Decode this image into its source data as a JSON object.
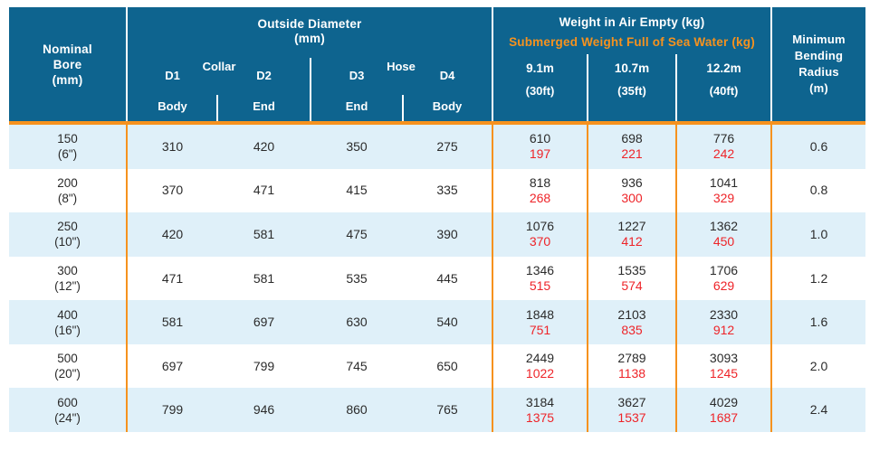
{
  "colors": {
    "header_background": "#0E648F",
    "accent_orange": "#F6921E",
    "value_red": "#EE2429",
    "row_alternate_blue": "#DFF0F9",
    "text_dark": "#2B2B2B"
  },
  "chart_data": {
    "type": "table",
    "header": {
      "nominal_bore": {
        "line1": "Nominal",
        "line2": "Bore",
        "line3": "(mm)"
      },
      "outside_diameter": {
        "title": "Outside Diameter",
        "unit": "(mm)",
        "group1_label": "Collar",
        "group2_label": "Hose",
        "d1": "D1",
        "d2": "D2",
        "d3": "D3",
        "d4": "D4",
        "d1_pos": "Body",
        "d2_pos": "End",
        "d3_pos": "End",
        "d4_pos": "Body"
      },
      "weight": {
        "title": "Weight in Air Empty (kg)",
        "subtitle": "Submerged Weight Full of Sea Water (kg)",
        "col1": {
          "len": "9.1m",
          "ft": "(30ft)"
        },
        "col2": {
          "len": "10.7m",
          "ft": "(35ft)"
        },
        "col3": {
          "len": "12.2m",
          "ft": "(40ft)"
        }
      },
      "min_bending": {
        "line1": "Minimum",
        "line2": "Bending",
        "line3": "Radius",
        "line4": "(m)"
      }
    },
    "rows": [
      {
        "bore": "150",
        "inch": "(6\")",
        "d1": "310",
        "d2": "420",
        "d3": "350",
        "d4": "275",
        "w1_air": "610",
        "w1_sub": "197",
        "w2_air": "698",
        "w2_sub": "221",
        "w3_air": "776",
        "w3_sub": "242",
        "radius": "0.6"
      },
      {
        "bore": "200",
        "inch": "(8\")",
        "d1": "370",
        "d2": "471",
        "d3": "415",
        "d4": "335",
        "w1_air": "818",
        "w1_sub": "268",
        "w2_air": "936",
        "w2_sub": "300",
        "w3_air": "1041",
        "w3_sub": "329",
        "radius": "0.8"
      },
      {
        "bore": "250",
        "inch": "(10\")",
        "d1": "420",
        "d2": "581",
        "d3": "475",
        "d4": "390",
        "w1_air": "1076",
        "w1_sub": "370",
        "w2_air": "1227",
        "w2_sub": "412",
        "w3_air": "1362",
        "w3_sub": "450",
        "radius": "1.0"
      },
      {
        "bore": "300",
        "inch": "(12\")",
        "d1": "471",
        "d2": "581",
        "d3": "535",
        "d4": "445",
        "w1_air": "1346",
        "w1_sub": "515",
        "w2_air": "1535",
        "w2_sub": "574",
        "w3_air": "1706",
        "w3_sub": "629",
        "radius": "1.2"
      },
      {
        "bore": "400",
        "inch": "(16\")",
        "d1": "581",
        "d2": "697",
        "d3": "630",
        "d4": "540",
        "w1_air": "1848",
        "w1_sub": "751",
        "w2_air": "2103",
        "w2_sub": "835",
        "w3_air": "2330",
        "w3_sub": "912",
        "radius": "1.6"
      },
      {
        "bore": "500",
        "inch": "(20\")",
        "d1": "697",
        "d2": "799",
        "d3": "745",
        "d4": "650",
        "w1_air": "2449",
        "w1_sub": "1022",
        "w2_air": "2789",
        "w2_sub": "1138",
        "w3_air": "3093",
        "w3_sub": "1245",
        "radius": "2.0"
      },
      {
        "bore": "600",
        "inch": "(24\")",
        "d1": "799",
        "d2": "946",
        "d3": "860",
        "d4": "765",
        "w1_air": "3184",
        "w1_sub": "1375",
        "w2_air": "3627",
        "w2_sub": "1537",
        "w3_air": "4029",
        "w3_sub": "1687",
        "radius": "2.4"
      }
    ]
  }
}
